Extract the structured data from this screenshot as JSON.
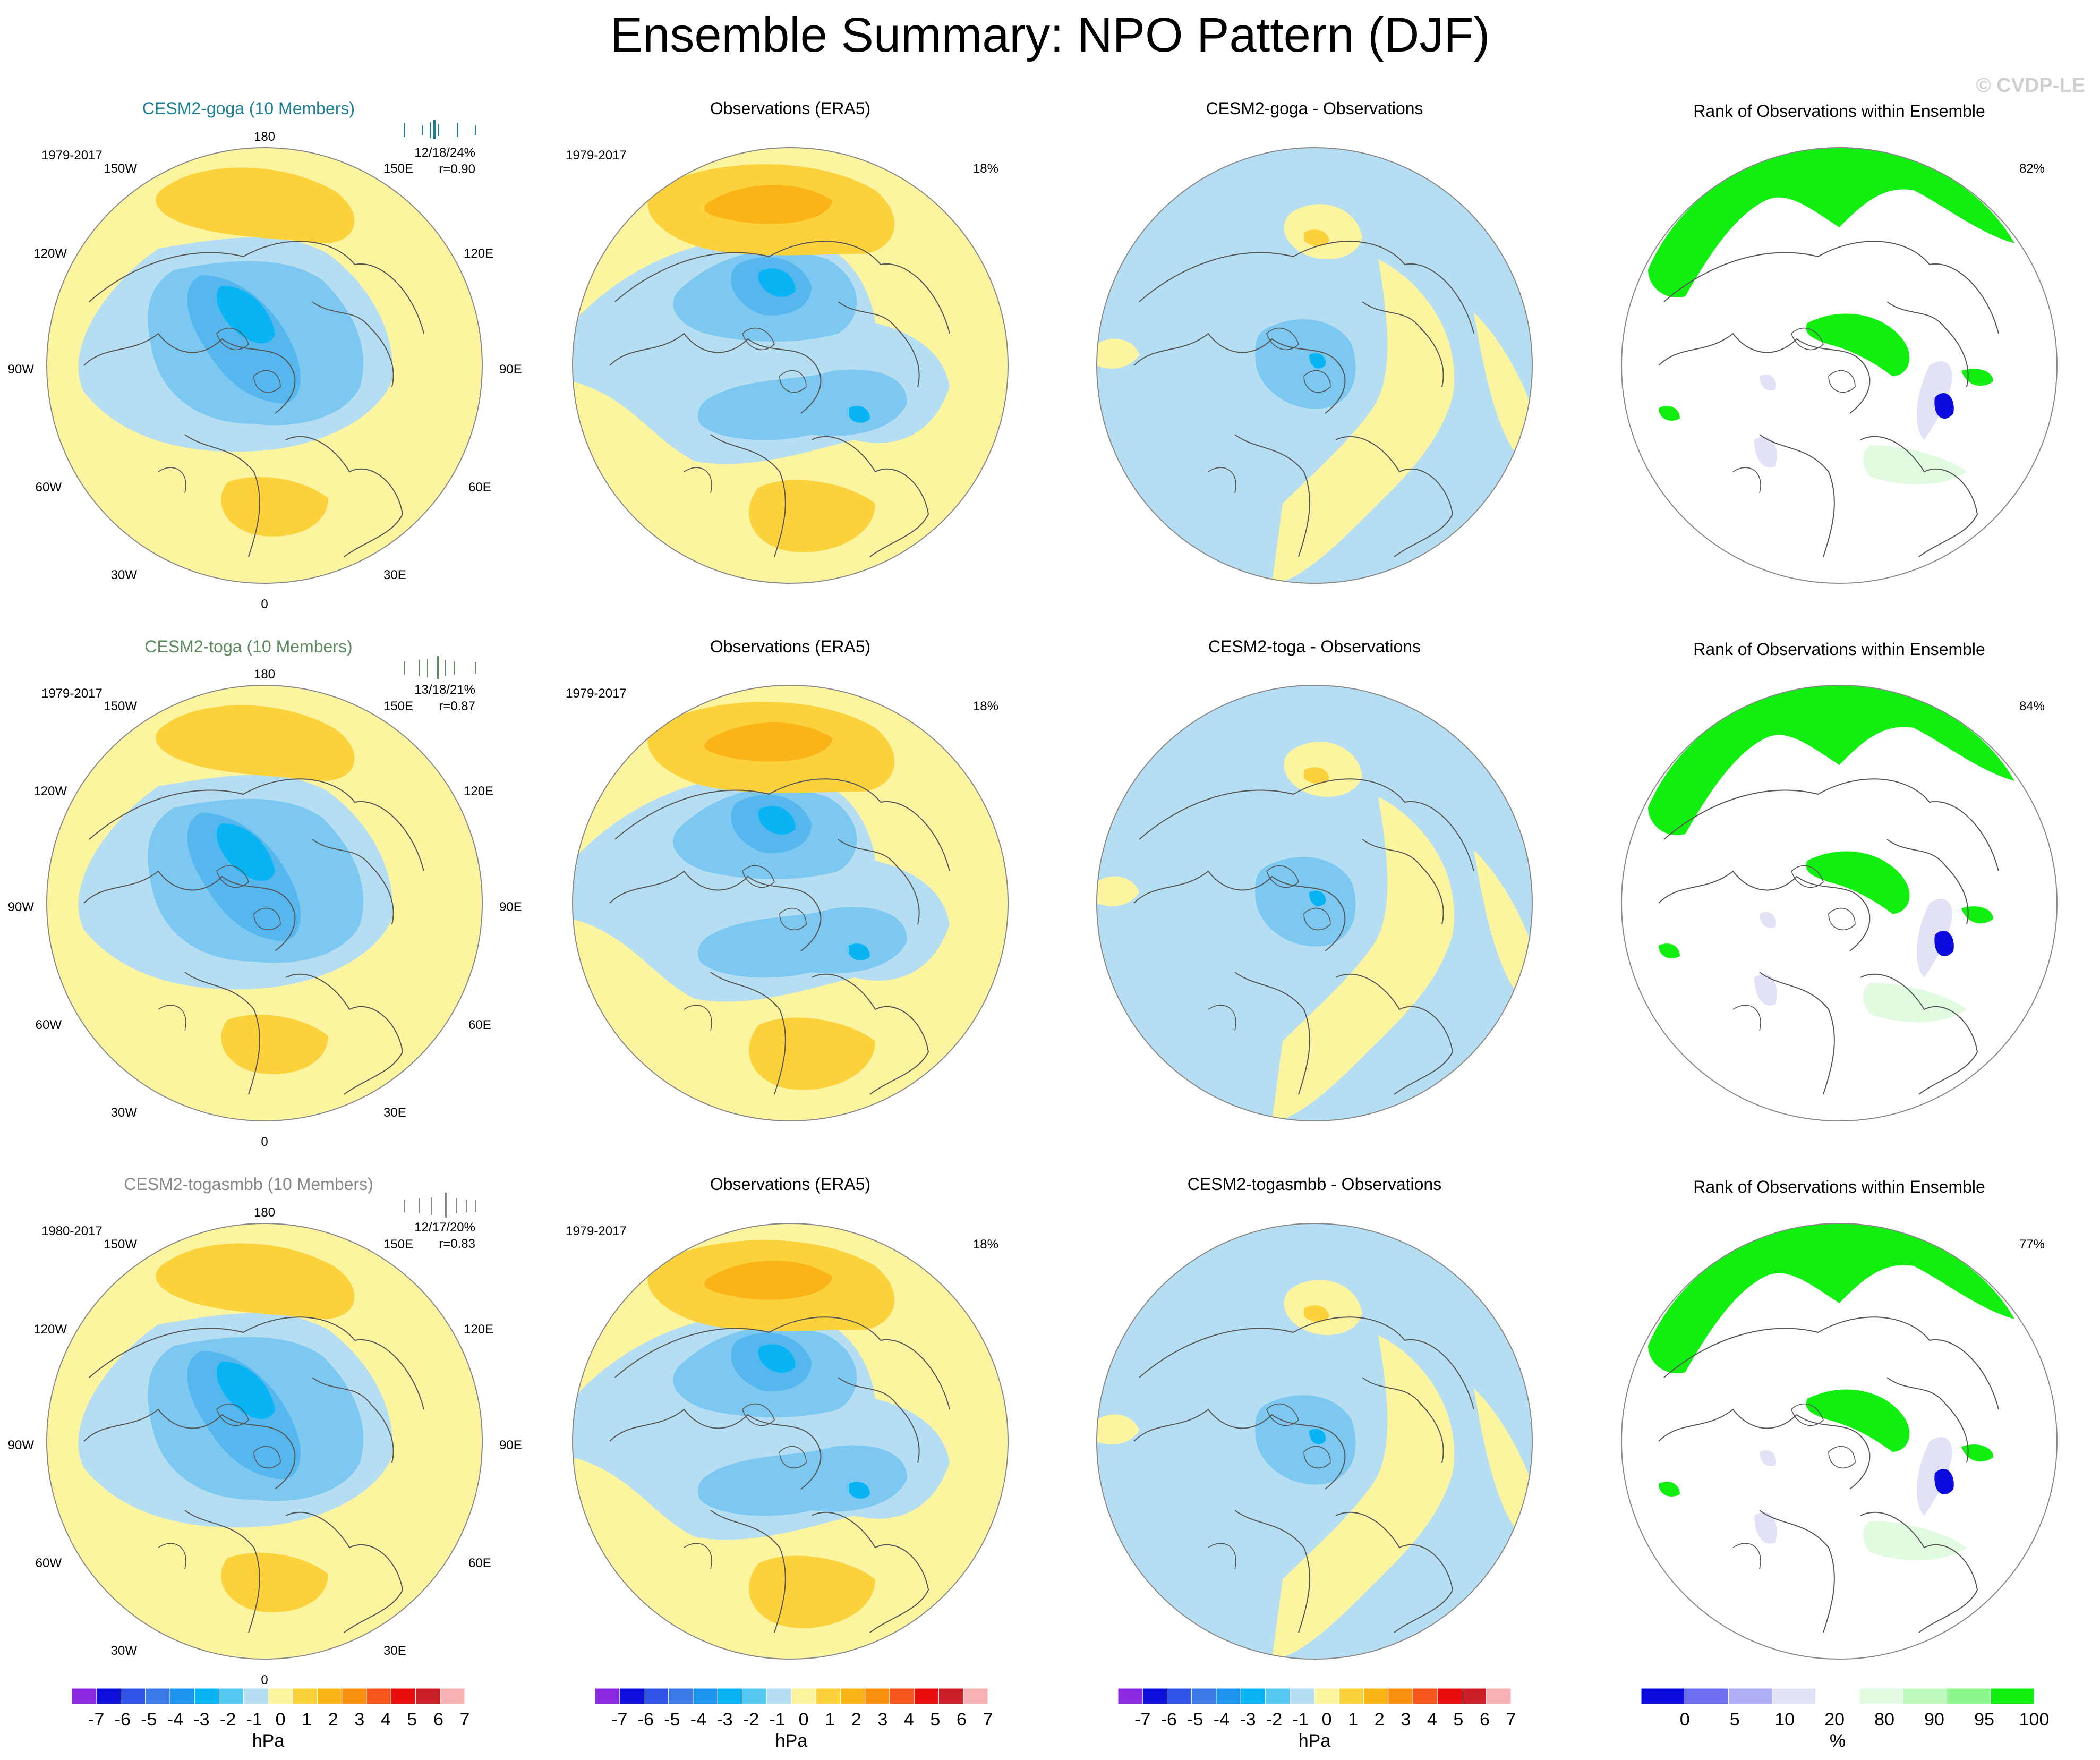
{
  "title": "Ensemble Summary: NPO Pattern (DJF)",
  "watermark": "© CVDP-LE",
  "colors": {
    "sea_yellow": "#fdf4a0",
    "neg1": "#b6def2",
    "neg2": "#7cc8f0",
    "neg3": "#56b6ee",
    "neg4": "#08b4f4",
    "pos2": "#fbd23c",
    "pos3": "#fbb417",
    "rank_green": "#10ef10",
    "rank_light_green": "#e0fbe0",
    "rank_lavender": "#e1e2f6",
    "rank_blue": "#0b0be0",
    "model_goga": "#1e7f9a",
    "model_toga": "#5d8a5f",
    "model_togasmbb": "#888888"
  },
  "lon_labels": {
    "top": "180",
    "bottom": "0",
    "left_labels": [
      "150W",
      "120W",
      "90W",
      "60W",
      "30W"
    ],
    "right_labels": [
      "150E",
      "120E",
      "90E",
      "60E",
      "30E"
    ]
  },
  "rows": [
    {
      "model_title": "CESM2-goga (10 Members)",
      "model_period": "1979-2017",
      "model_stats": "12/18/24%",
      "model_r": "r=0.90",
      "obs_title": "Observations (ERA5)",
      "obs_period": "1979-2017",
      "obs_pct": "18%",
      "diff_title": "CESM2-goga - Observations",
      "rank_title": "Rank of Observations within Ensemble",
      "rank_pct": "82%"
    },
    {
      "model_title": "CESM2-toga (10 Members)",
      "model_period": "1979-2017",
      "model_stats": "13/18/21%",
      "model_r": "r=0.87",
      "obs_title": "Observations (ERA5)",
      "obs_period": "1979-2017",
      "obs_pct": "18%",
      "diff_title": "CESM2-toga - Observations",
      "rank_title": "Rank of Observations within Ensemble",
      "rank_pct": "84%"
    },
    {
      "model_title": "CESM2-togasmbb (10 Members)",
      "model_period": "1980-2017",
      "model_stats": "12/17/20%",
      "model_r": "r=0.83",
      "obs_title": "Observations (ERA5)",
      "obs_period": "1979-2017",
      "obs_pct": "18%",
      "diff_title": "CESM2-togasmbb - Observations",
      "rank_title": "Rank of Observations within Ensemble",
      "rank_pct": "77%"
    }
  ],
  "colorbar_hpa": {
    "unit": "hPa",
    "labels": [
      "-7",
      "-6",
      "-5",
      "-4",
      "-3",
      "-2",
      "-1",
      "0",
      "1",
      "2",
      "3",
      "4",
      "5",
      "6",
      "7"
    ],
    "colors": [
      "#8b2ae0",
      "#1010dc",
      "#2f54e6",
      "#3c7ae8",
      "#1e96f0",
      "#08b4f4",
      "#56c8f4",
      "#b6def2",
      "#fdf4a0",
      "#fbd23c",
      "#fbb417",
      "#f98f0f",
      "#f5561b",
      "#e80e0e",
      "#cc1f2a",
      "#f7b3b3"
    ]
  },
  "colorbar_pct": {
    "unit": "%",
    "labels": [
      "0",
      "5",
      "10",
      "20",
      "80",
      "90",
      "95",
      "100"
    ],
    "colors": [
      "#0b0be0",
      "#6e6ef0",
      "#aeaef6",
      "#e1e2f6",
      "#ffffff",
      "#e0fbe0",
      "#bdf9bd",
      "#8cf58c",
      "#10ef10"
    ]
  }
}
